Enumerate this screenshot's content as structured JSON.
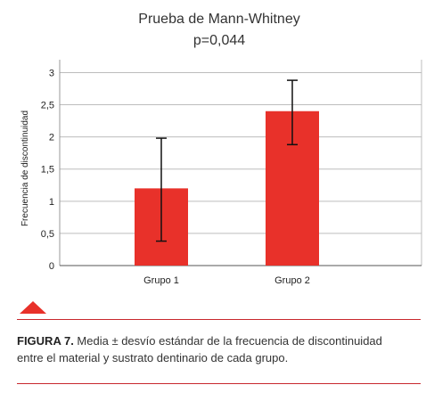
{
  "chart_data": {
    "type": "bar",
    "title": "Prueba de Mann-Whitney",
    "subtitle": "p=0,044",
    "ylabel": "Frecuencia de discontinuidad",
    "xlabel": "",
    "categories": [
      "Grupo 1",
      "Grupo 2"
    ],
    "values": [
      1.2,
      2.4
    ],
    "error_low": [
      0.38,
      1.88
    ],
    "error_high": [
      1.98,
      2.88
    ],
    "ylim": [
      0,
      3.2
    ],
    "yticks": [
      0,
      0.5,
      1,
      1.5,
      2,
      2.5,
      3
    ],
    "ytick_labels": [
      "0",
      "0,5",
      "1",
      "1,5",
      "2",
      "2,5",
      "3"
    ],
    "grid": true,
    "bar_color": "#e8312a"
  },
  "caption": {
    "label": "FIGURA 7.",
    "text": " Media ± desvío estándar de la frecuencia de discontinuidad entre el material y sustrato dentinario de cada grupo."
  },
  "colors": {
    "accent": "#e8312a",
    "rule": "#c8282d"
  }
}
